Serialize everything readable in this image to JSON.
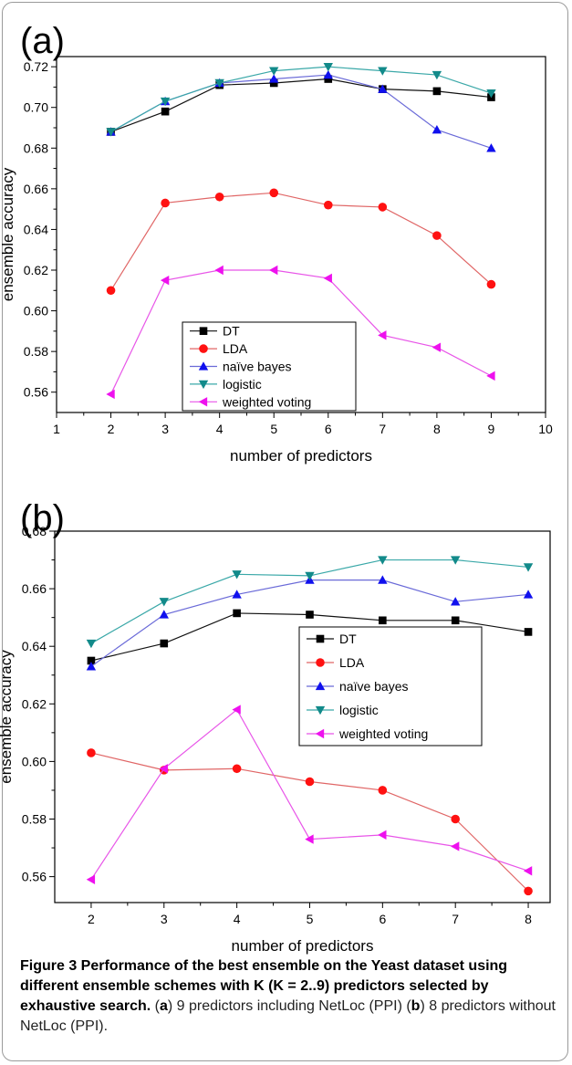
{
  "chart_data": [
    {
      "panel_label": "(a)",
      "type": "line",
      "xlabel": "number of predictors",
      "ylabel": "ensemble accuracy",
      "xlim": [
        1,
        10
      ],
      "ylim": [
        0.55,
        0.725
      ],
      "xticks": [
        1,
        2,
        3,
        4,
        5,
        6,
        7,
        8,
        9,
        10
      ],
      "yticks": [
        0.56,
        0.58,
        0.6,
        0.62,
        0.64,
        0.66,
        0.68,
        0.7,
        0.72
      ],
      "ytick_labels": [
        "0.56",
        "0.58",
        "0.60",
        "0.62",
        "0.64",
        "0.66",
        "0.68",
        "0.70",
        "0.72"
      ],
      "legend_position": "lower-center",
      "x": [
        2,
        3,
        4,
        5,
        6,
        7,
        8,
        9
      ],
      "series": [
        {
          "name": "DT",
          "values": [
            0.688,
            0.698,
            0.711,
            0.712,
            0.714,
            0.709,
            0.708,
            0.705
          ]
        },
        {
          "name": "LDA",
          "values": [
            0.61,
            0.653,
            0.656,
            0.658,
            0.652,
            0.651,
            0.637,
            0.613
          ]
        },
        {
          "name": "naïve bayes",
          "values": [
            0.688,
            0.703,
            0.712,
            0.714,
            0.716,
            0.709,
            0.689,
            0.68
          ]
        },
        {
          "name": "logistic",
          "values": [
            0.688,
            0.703,
            0.712,
            0.718,
            0.72,
            0.718,
            0.716,
            0.707
          ]
        },
        {
          "name": "weighted voting",
          "values": [
            0.559,
            0.615,
            0.62,
            0.62,
            0.616,
            0.588,
            0.582,
            0.568
          ]
        }
      ]
    },
    {
      "panel_label": "(b)",
      "type": "line",
      "xlabel": "number of predictors",
      "ylabel": "ensemble accuracy",
      "xlim": [
        1.5,
        8.3
      ],
      "ylim": [
        0.551,
        0.68
      ],
      "xticks": [
        2,
        3,
        4,
        5,
        6,
        7,
        8
      ],
      "yticks": [
        0.56,
        0.58,
        0.6,
        0.62,
        0.64,
        0.66,
        0.68
      ],
      "ytick_labels": [
        "0.56",
        "0.58",
        "0.60",
        "0.62",
        "0.64",
        "0.66",
        "0.68"
      ],
      "legend_position": "center-right",
      "x": [
        2,
        3,
        4,
        5,
        6,
        7,
        8
      ],
      "series": [
        {
          "name": "DT",
          "values": [
            0.635,
            0.641,
            0.6515,
            0.651,
            0.649,
            0.649,
            0.645
          ]
        },
        {
          "name": "LDA",
          "values": [
            0.603,
            0.597,
            0.5975,
            0.593,
            0.59,
            0.58,
            0.555
          ]
        },
        {
          "name": "naïve bayes",
          "values": [
            0.633,
            0.651,
            0.658,
            0.663,
            0.663,
            0.6555,
            0.658
          ]
        },
        {
          "name": "logistic",
          "values": [
            0.641,
            0.6555,
            0.665,
            0.6645,
            0.67,
            0.67,
            0.6675
          ]
        },
        {
          "name": "weighted voting",
          "values": [
            0.559,
            0.5975,
            0.618,
            0.573,
            0.5745,
            0.5705,
            0.562
          ]
        }
      ]
    }
  ],
  "series_style": [
    {
      "marker": "square",
      "line": "#111111",
      "fill": "#000000"
    },
    {
      "marker": "circle",
      "line": "#e06666",
      "fill": "#ff1111"
    },
    {
      "marker": "triangle-up",
      "line": "#6a6ad8",
      "fill": "#1010ee"
    },
    {
      "marker": "triangle-down",
      "line": "#3aa8a8",
      "fill": "#128a8a"
    },
    {
      "marker": "triangle-left",
      "line": "#e855e8",
      "fill": "#ee11ee"
    }
  ],
  "caption": {
    "bold": "Figure 3 Performance of the best ensemble on the Yeast dataset using different ensemble schemes with K (K = 2..9) predictors selected by exhaustive search.",
    "part1_open": " (",
    "part1_letter": "a",
    "part1_text": ") 9 predictors including NetLoc (PPI) (",
    "part2_letter": "b",
    "part2_text": ") 8 predictors without NetLoc (PPI)."
  }
}
